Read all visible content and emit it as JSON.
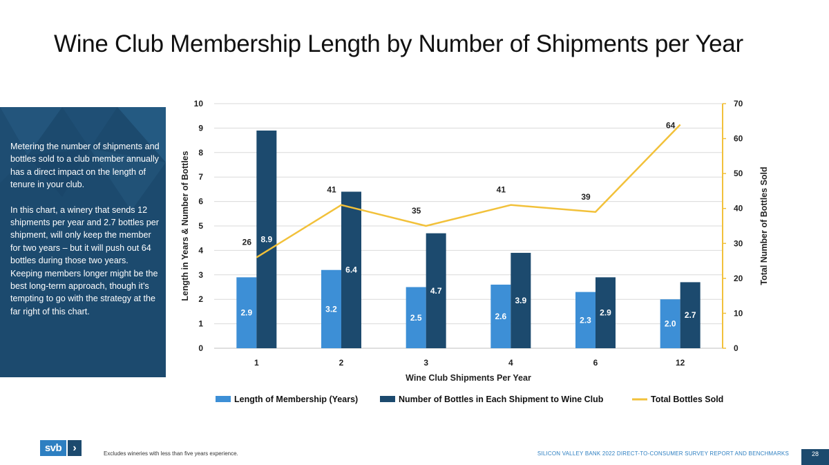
{
  "title": "Wine Club Membership Length by Number of Shipments per Year",
  "side_panel": {
    "paragraph_1": "Metering the number of shipments and bottles sold to a club member annually has a direct impact on the length of tenure in your club.",
    "paragraph_2": "In this chart, a winery that sends 12 shipments per year and 2.7 bottles per shipment, will only keep the member for two years – but it will push out 64 bottles during those two years. Keeping members longer might be the best long-term approach, though it’s tempting to go with the strategy at the far right of this chart."
  },
  "footer": {
    "logo_text": "svb",
    "logo_chevron": "›",
    "footnote": "Excludes wineries with less than five years experience.",
    "report_title": "SILICON VALLEY BANK 2022 DIRECT-TO-CONSUMER SURVEY REPORT AND BENCHMARKS",
    "page_number": "28"
  },
  "chart_data": {
    "type": "bar",
    "categories": [
      "1",
      "2",
      "3",
      "4",
      "6",
      "12"
    ],
    "series": [
      {
        "name": "Length of Membership (Years)",
        "kind": "bar",
        "axis": "left",
        "color": "#3d8fd6",
        "values": [
          2.9,
          3.2,
          2.5,
          2.6,
          2.3,
          2.0
        ],
        "labels": [
          "2.9",
          "3.2",
          "2.5",
          "2.6",
          "2.3",
          "2.0"
        ]
      },
      {
        "name": "Number of Bottles in Each Shipment to Wine Club",
        "kind": "bar",
        "axis": "left",
        "color": "#1c4a6e",
        "values": [
          8.9,
          6.4,
          4.7,
          3.9,
          2.9,
          2.7
        ],
        "labels": [
          "8.9",
          "6.4",
          "4.7",
          "3.9",
          "2.9",
          "2.7"
        ]
      },
      {
        "name": "Total Bottles Sold",
        "kind": "line",
        "axis": "right",
        "color": "#f2c13a",
        "values": [
          26,
          41,
          35,
          41,
          39,
          64
        ],
        "labels": [
          "26",
          "41",
          "35",
          "41",
          "39",
          "64"
        ]
      }
    ],
    "xlabel": "Wine Club Shipments Per Year",
    "ylabel": "Length in Years & Number of Bottles",
    "y2label": "Total Number of Bottles Sold",
    "ylim": [
      0,
      10
    ],
    "y2lim": [
      0,
      70
    ],
    "yticks": [
      "0",
      "1",
      "2",
      "3",
      "4",
      "5",
      "6",
      "7",
      "8",
      "9",
      "10"
    ],
    "y2ticks": [
      "0",
      "10",
      "20",
      "30",
      "40",
      "50",
      "60",
      "70"
    ],
    "grid": true,
    "legend_position": "bottom",
    "colors": {
      "grid": "#d9d9d9",
      "axis": "#bfbfbf",
      "right_axis": "#f2c13a"
    }
  }
}
